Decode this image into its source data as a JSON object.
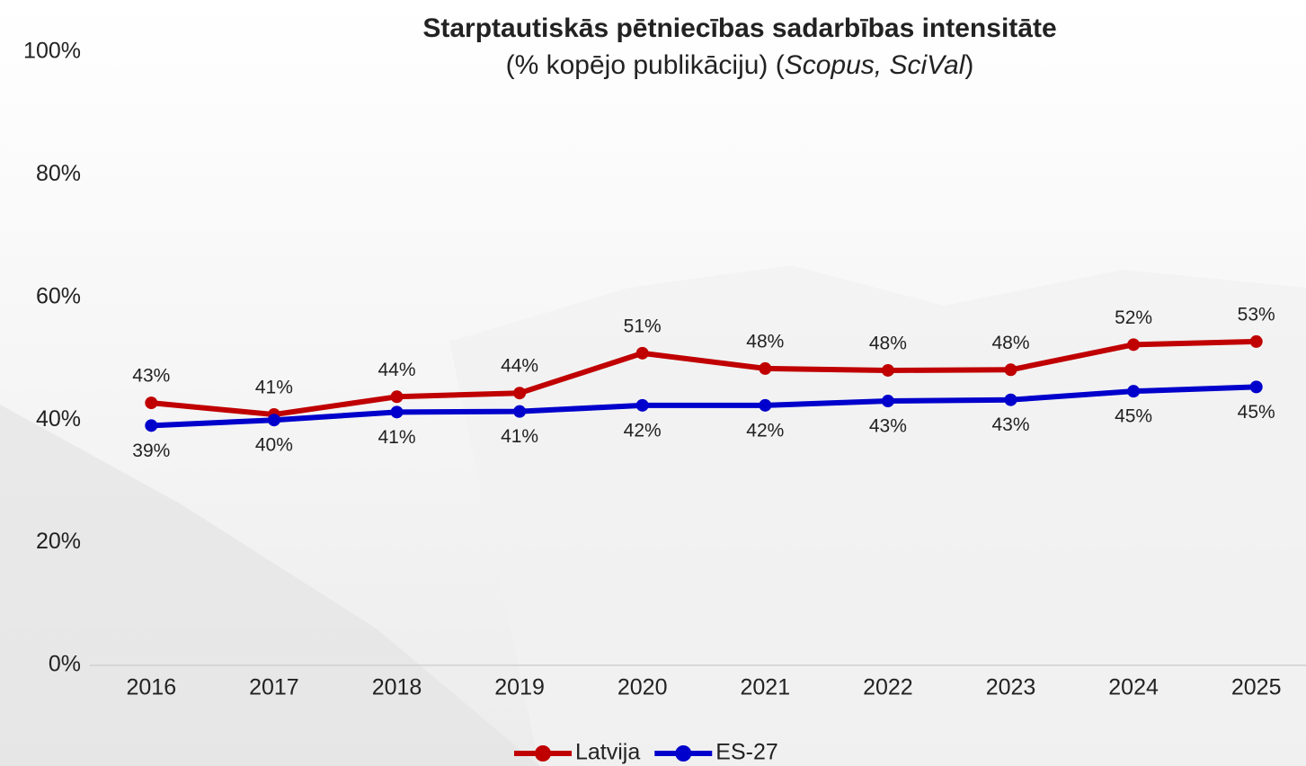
{
  "chart_data": {
    "type": "line",
    "title": "Starptautiskās pētniecības sadarbības intensitāte",
    "subtitle": [
      "(% kopējo publikāciju) (",
      "Scopus, SciVal",
      ")"
    ],
    "categories": [
      "2016",
      "2017",
      "2018",
      "2019",
      "2020",
      "2021",
      "2022",
      "2023",
      "2024",
      "2025"
    ],
    "series": [
      {
        "name": "Latvija",
        "color": "#c00000",
        "values": [
          42.8,
          40.9,
          43.8,
          44.4,
          50.9,
          48.4,
          48.1,
          48.2,
          52.3,
          52.8
        ],
        "value_labels": [
          "43%",
          "41%",
          "44%",
          "44%",
          "51%",
          "48%",
          "48%",
          "48%",
          "52%",
          "53%"
        ]
      },
      {
        "name": "ES-27",
        "color": "#0000cc",
        "values": [
          39.1,
          40.0,
          41.3,
          41.4,
          42.4,
          42.4,
          43.1,
          43.3,
          44.7,
          45.4
        ],
        "value_labels": [
          "39%",
          "40%",
          "41%",
          "41%",
          "42%",
          "42%",
          "43%",
          "43%",
          "45%",
          "45%"
        ]
      }
    ],
    "ylim": [
      0,
      100
    ],
    "yticks": [
      {
        "value": 0,
        "label": "0%"
      },
      {
        "value": 20,
        "label": "20%"
      },
      {
        "value": 40,
        "label": "40%"
      },
      {
        "value": 60,
        "label": "60%"
      },
      {
        "value": 80,
        "label": "80%"
      },
      {
        "value": 100,
        "label": "100%"
      }
    ],
    "grid": false,
    "legend": "bottom"
  }
}
